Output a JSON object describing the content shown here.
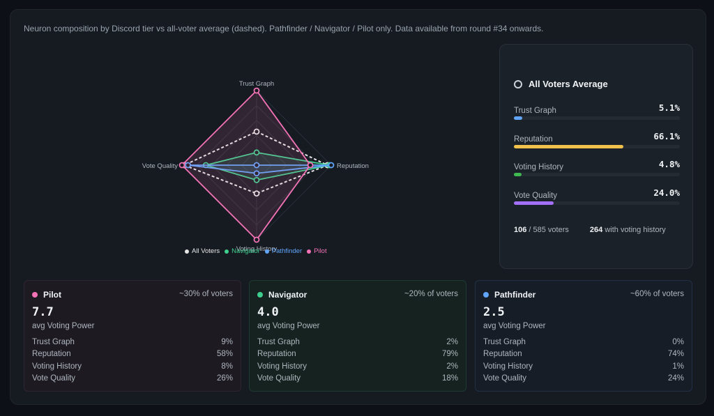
{
  "description": "Neuron composition by Discord tier vs all-voter average (dashed). Pathfinder / Navigator / Pilot only. Data available from round #34 onwards.",
  "chart_data": {
    "type": "radar",
    "axes": [
      "Trust Graph",
      "Reputation",
      "Voting History",
      "Vote Quality"
    ],
    "max": 100,
    "series": [
      {
        "name": "All Voters",
        "color": "#e6e6e6",
        "dashed": true,
        "values": [
          45,
          95,
          38,
          97
        ]
      },
      {
        "name": "Navigator",
        "color": "#3ecf8e",
        "values": [
          17,
          98,
          20,
          68
        ]
      },
      {
        "name": "Pathfinder",
        "color": "#60a5fa",
        "values": [
          0,
          100,
          11,
          92
        ]
      },
      {
        "name": "Pilot",
        "color": "#f472b6",
        "values": [
          100,
          72,
          100,
          100
        ]
      }
    ]
  },
  "all_voters": {
    "title": "All Voters Average",
    "rows": [
      {
        "label": "Trust Graph",
        "value": "5.1%",
        "pct": 5.1,
        "color": "#60a5fa"
      },
      {
        "label": "Reputation",
        "value": "66.1%",
        "pct": 66.1,
        "color": "#f0c14b"
      },
      {
        "label": "Voting History",
        "value": "4.8%",
        "pct": 4.8,
        "color": "#3fb950"
      },
      {
        "label": "Vote Quality",
        "value": "24.0%",
        "pct": 24.0,
        "color": "#a371f7"
      }
    ],
    "voters_count": "106",
    "voters_total": " / 585 voters",
    "history_count": "264",
    "history_label": " with voting history"
  },
  "tiers": [
    {
      "name": "Pilot",
      "share": "~30% of voters",
      "vp": "7.7",
      "vp_label": "avg Voting Power",
      "color": "#f472b6",
      "bg": "#1e1a22",
      "border": "#2e2631",
      "rows": [
        [
          "Trust Graph",
          "9%"
        ],
        [
          "Reputation",
          "58%"
        ],
        [
          "Voting History",
          "8%"
        ],
        [
          "Vote Quality",
          "26%"
        ]
      ]
    },
    {
      "name": "Navigator",
      "share": "~20% of voters",
      "vp": "4.0",
      "vp_label": "avg Voting Power",
      "color": "#3ecf8e",
      "bg": "#15221f",
      "border": "#1f3a30",
      "rows": [
        [
          "Trust Graph",
          "2%"
        ],
        [
          "Reputation",
          "79%"
        ],
        [
          "Voting History",
          "2%"
        ],
        [
          "Vote Quality",
          "18%"
        ]
      ]
    },
    {
      "name": "Pathfinder",
      "share": "~60% of voters",
      "vp": "2.5",
      "vp_label": "avg Voting Power",
      "color": "#60a5fa",
      "bg": "#161d27",
      "border": "#223046",
      "rows": [
        [
          "Trust Graph",
          "0%"
        ],
        [
          "Reputation",
          "74%"
        ],
        [
          "Voting History",
          "1%"
        ],
        [
          "Vote Quality",
          "24%"
        ]
      ]
    }
  ]
}
